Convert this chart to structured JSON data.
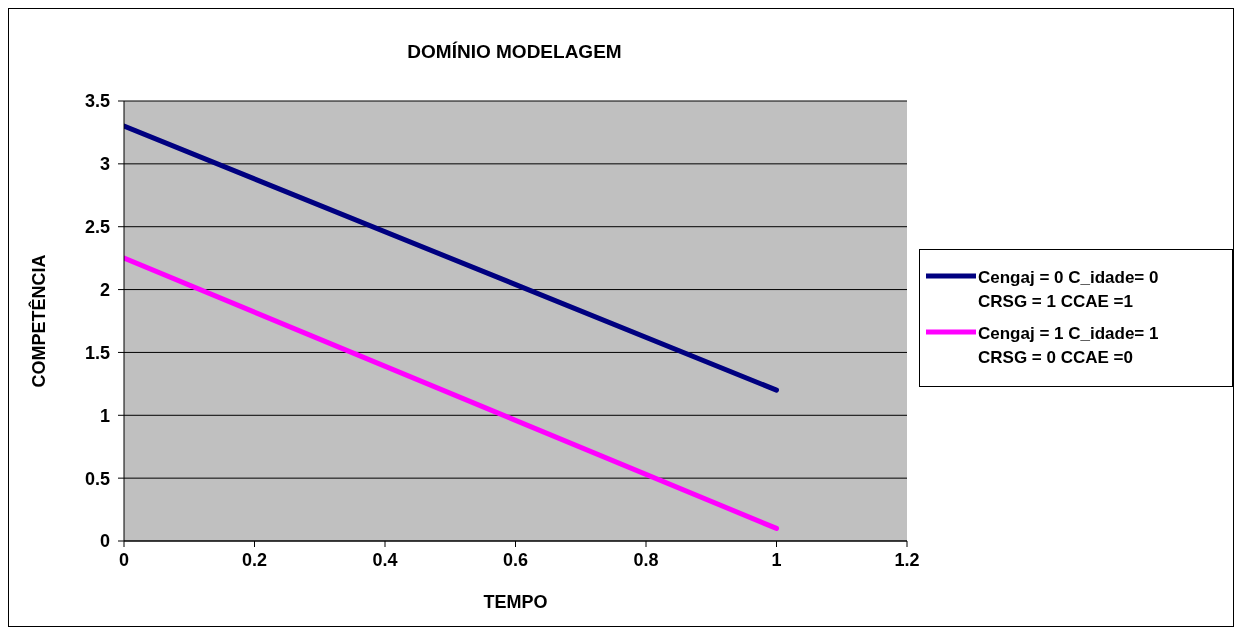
{
  "chart_data": {
    "type": "line",
    "title": "DOMÍNIO MODELAGEM",
    "xlabel": "TEMPO",
    "ylabel": "COMPETÊNCIA",
    "x": [
      0,
      1
    ],
    "series": [
      {
        "name": "Cengaj = 0 C_idade= 0 CRSG = 1 CCAE =1",
        "color": "#000080",
        "values": [
          3.3,
          1.2
        ]
      },
      {
        "name": "Cengaj = 1 C_idade= 1 CRSG = 0 CCAE =0",
        "color": "#ff00ff",
        "values": [
          2.25,
          0.1
        ]
      }
    ],
    "xlim": [
      0,
      1.2
    ],
    "xticks": [
      0,
      0.2,
      0.4,
      0.6,
      0.8,
      1,
      1.2
    ],
    "ylim": [
      0,
      3.5
    ],
    "yticks": [
      0,
      0.5,
      1,
      1.5,
      2,
      2.5,
      3,
      3.5
    ],
    "grid": "y",
    "legend": "right",
    "marker": "none",
    "line_style": "solid"
  }
}
